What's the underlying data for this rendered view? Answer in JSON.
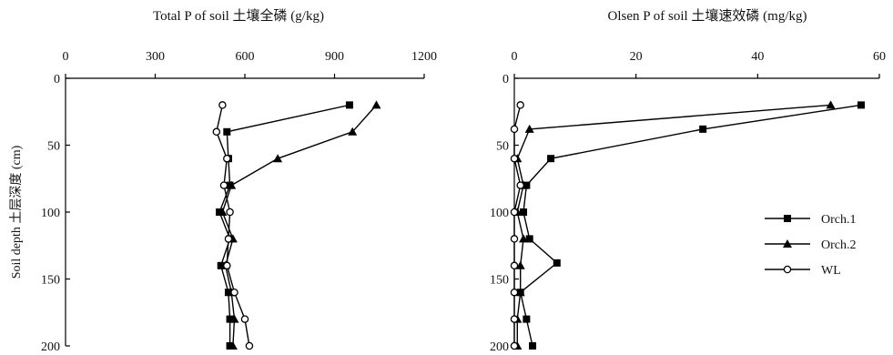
{
  "chart_data": [
    {
      "type": "line",
      "title": "Total P of soil 土壤全磷 (g/kg)",
      "ylabel": "Soil depth 土层深度 (cm)",
      "xlim": [
        0,
        1200
      ],
      "ylim": [
        0,
        200
      ],
      "x_axis_position": "top",
      "y_inverted": true,
      "x_ticks": [
        0,
        300,
        600,
        900,
        1200
      ],
      "y_ticks": [
        0,
        50,
        100,
        150,
        200
      ],
      "series": [
        {
          "name": "Orch.1",
          "marker": "square",
          "points": [
            [
              950,
              20
            ],
            [
              540,
              40
            ],
            [
              545,
              60
            ],
            [
              550,
              80
            ],
            [
              515,
              100
            ],
            [
              550,
              120
            ],
            [
              520,
              140
            ],
            [
              545,
              160
            ],
            [
              550,
              180
            ],
            [
              550,
              200
            ]
          ]
        },
        {
          "name": "Orch.2",
          "marker": "triangle",
          "points": [
            [
              1040,
              20
            ],
            [
              960,
              40
            ],
            [
              710,
              60
            ],
            [
              555,
              80
            ],
            [
              525,
              100
            ],
            [
              560,
              120
            ],
            [
              535,
              140
            ],
            [
              555,
              160
            ],
            [
              565,
              180
            ],
            [
              560,
              200
            ]
          ]
        },
        {
          "name": "WL",
          "marker": "circle",
          "points": [
            [
              525,
              20
            ],
            [
              505,
              40
            ],
            [
              540,
              60
            ],
            [
              530,
              80
            ],
            [
              550,
              100
            ],
            [
              545,
              120
            ],
            [
              540,
              140
            ],
            [
              565,
              160
            ],
            [
              600,
              180
            ],
            [
              615,
              200
            ]
          ]
        }
      ]
    },
    {
      "type": "line",
      "title": "Olsen P of soil 土壤速效磷 (mg/kg)",
      "xlim": [
        0,
        60
      ],
      "ylim": [
        0,
        200
      ],
      "x_axis_position": "top",
      "y_inverted": true,
      "x_ticks": [
        0,
        20,
        40,
        60
      ],
      "y_ticks": [
        0,
        50,
        100,
        150,
        200
      ],
      "legend_position": "right",
      "series": [
        {
          "name": "Orch.1",
          "marker": "square",
          "points": [
            [
              57,
              20
            ],
            [
              31,
              38
            ],
            [
              6,
              60
            ],
            [
              2,
              80
            ],
            [
              1.5,
              100
            ],
            [
              2.5,
              120
            ],
            [
              7,
              138
            ],
            [
              1,
              160
            ],
            [
              2,
              180
            ],
            [
              3,
              200
            ]
          ]
        },
        {
          "name": "Orch.2",
          "marker": "triangle",
          "points": [
            [
              52,
              20
            ],
            [
              2.5,
              38
            ],
            [
              0.5,
              60
            ],
            [
              1.5,
              80
            ],
            [
              0.5,
              100
            ],
            [
              1.5,
              120
            ],
            [
              1,
              140
            ],
            [
              1,
              160
            ],
            [
              0.5,
              180
            ],
            [
              0.5,
              200
            ]
          ]
        },
        {
          "name": "WL",
          "marker": "circle",
          "points": [
            [
              1,
              20
            ],
            [
              0,
              38
            ],
            [
              0,
              60
            ],
            [
              1,
              80
            ],
            [
              0,
              100
            ],
            [
              0,
              120
            ],
            [
              0,
              140
            ],
            [
              0,
              160
            ],
            [
              0,
              180
            ],
            [
              0,
              200
            ]
          ]
        }
      ]
    }
  ]
}
